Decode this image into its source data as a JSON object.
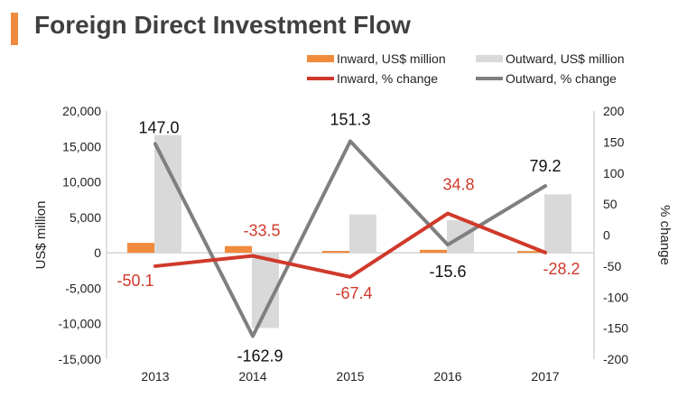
{
  "title": "Foreign Direct Investment Flow",
  "colors": {
    "accent": "#f08a3c",
    "inward_bar": "#f08a3c",
    "outward_bar": "#d9d9d9",
    "inward_line": "#d0392b",
    "outward_line": "#7f7f7f",
    "axis": "#222222"
  },
  "chart_data": {
    "type": "bar",
    "categories": [
      "2013",
      "2014",
      "2015",
      "2016",
      "2017"
    ],
    "series": [
      {
        "name": "Inward, US$ million",
        "kind": "bar",
        "axis": "left",
        "values": [
          1400,
          950,
          270,
          420,
          260
        ]
      },
      {
        "name": "Outward, US$ million",
        "kind": "bar",
        "axis": "left",
        "values": [
          16600,
          -10600,
          5400,
          4600,
          8250
        ]
      },
      {
        "name": "Inward, % change",
        "kind": "line",
        "axis": "right",
        "values": [
          -50.1,
          -33.5,
          -67.4,
          34.8,
          -28.2
        ],
        "labels": [
          "-50.1",
          "-33.5",
          "-67.4",
          "34.8",
          "-28.2"
        ]
      },
      {
        "name": "Outward, % change",
        "kind": "line",
        "axis": "right",
        "values": [
          147.0,
          -162.9,
          151.3,
          -15.6,
          79.2
        ],
        "labels": [
          "147.0",
          "-162.9",
          "151.3",
          "-15.6",
          "79.2"
        ]
      }
    ],
    "ylabel": "US$ million",
    "y2label": "% change",
    "ylim": [
      -15000,
      20000
    ],
    "y2lim": [
      -200,
      200
    ],
    "yticks": [
      "20,000",
      "15,000",
      "10,000",
      "5,000",
      "0",
      "-5,000",
      "-10,000",
      "-15,000"
    ],
    "y2ticks": [
      "200",
      "150",
      "100",
      "50",
      "0",
      "-50",
      "-100",
      "-150",
      "-200"
    ],
    "grid": false,
    "legend": "top-right"
  }
}
